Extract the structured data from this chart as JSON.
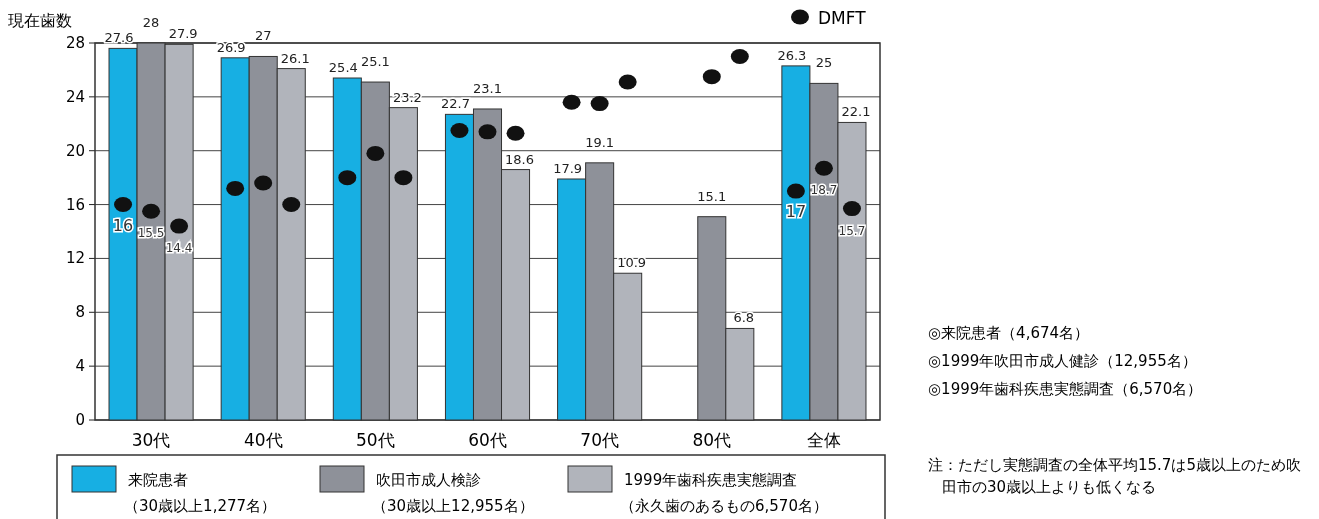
{
  "chart_data": {
    "type": "bar",
    "ylabel": "現在歯数",
    "categories": [
      "30代",
      "40代",
      "50代",
      "60代",
      "70代",
      "80代",
      "全体"
    ],
    "ylim": [
      0,
      28
    ],
    "yticks": [
      0,
      4,
      8,
      12,
      16,
      20,
      24,
      28
    ],
    "grid": "y",
    "legend": "bottom",
    "data_labels": true,
    "series": [
      {
        "name": "来院患者（30歳以上1,277名）",
        "color": "#17afe3",
        "values": [
          27.6,
          26.9,
          25.4,
          22.7,
          17.9,
          null,
          26.3
        ]
      },
      {
        "name": "吹田市成人検診（30歳以上12,955名）",
        "color": "#8e9199",
        "values": [
          28,
          27,
          25.1,
          23.1,
          19.1,
          15.1,
          25
        ]
      },
      {
        "name": "1999年歯科疾患実態調査（永久歯のあるもの6,570名）",
        "color": "#b1b4bb",
        "values": [
          27.9,
          26.1,
          23.2,
          18.6,
          10.9,
          6.8,
          22.1
        ]
      },
      {
        "type": "scatter",
        "name": "DMFT",
        "color": "#111111",
        "marker": "circle",
        "values": [
          16,
          17.2,
          18.0,
          21.5,
          23.6,
          null,
          17
        ],
        "value_labels": [
          "16",
          null,
          null,
          null,
          null,
          null,
          "17"
        ]
      },
      {
        "type": "scatter",
        "color": "#111111",
        "marker": "circle",
        "values": [
          15.5,
          17.6,
          19.8,
          21.4,
          23.5,
          25.5,
          18.7
        ],
        "value_labels": [
          "15.5",
          null,
          null,
          null,
          null,
          null,
          "18.7"
        ]
      },
      {
        "type": "scatter",
        "color": "#111111",
        "marker": "circle",
        "values": [
          14.4,
          16.0,
          18.0,
          21.3,
          25.1,
          27.0,
          15.7
        ],
        "value_labels": [
          "14.4",
          null,
          null,
          null,
          null,
          null,
          "15.7"
        ]
      }
    ],
    "annotations": [
      "◎来院患者（4,674名）",
      "◎1999年吹田市成人健診（12,955名）",
      "◎1999年歯科疾患実態調査（6,570名）",
      "注：ただし実態調査の全体平均15.7は5歳以上のため吹田市の30歳以上よりも低くなる"
    ]
  }
}
